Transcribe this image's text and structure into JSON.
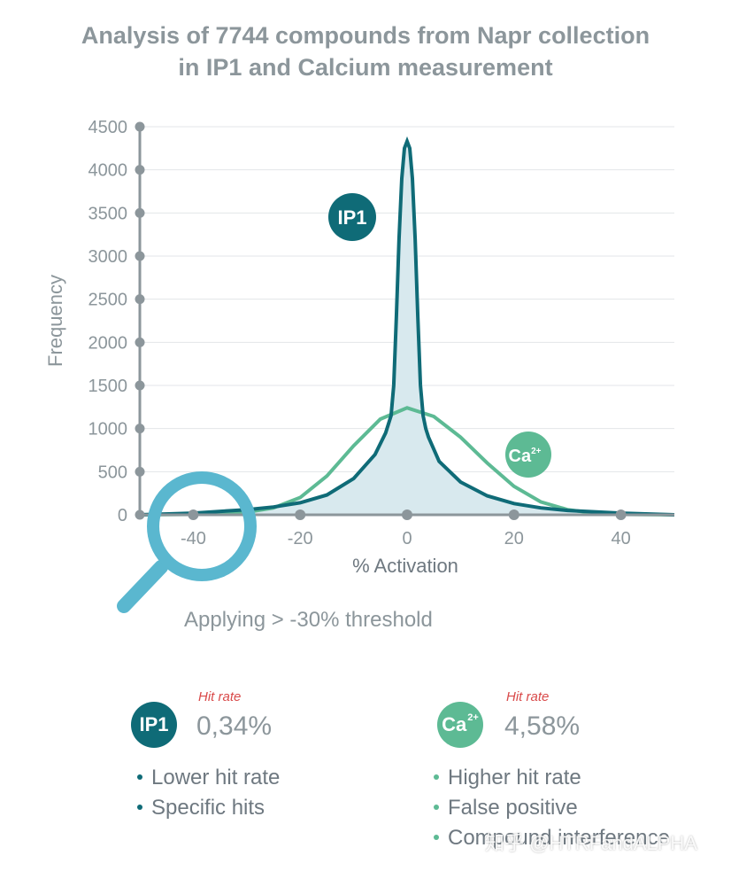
{
  "title": {
    "line1": "Analysis of 7744 compounds from Napr collection",
    "line2": "in IP1 and Calcium measurement"
  },
  "colors": {
    "ip1": "#0f6b77",
    "ca": "#5dba94",
    "fill": "#d8e9ee",
    "axis": "#8c969b",
    "grid": "#e3e6e8",
    "magnifier": "#5ab7cf"
  },
  "icons": [
    "magnifier-icon"
  ],
  "chart_data": {
    "type": "line",
    "title": "Analysis of 7744 compounds from Napr collection in IP1 and Calcium measurement",
    "xlabel": "% Activation",
    "ylabel": "Frequency",
    "xlim": [
      -50,
      50
    ],
    "ylim": [
      0,
      4500
    ],
    "x_ticks": [
      "-40",
      "-20",
      "0",
      "20",
      "40"
    ],
    "x_tick_values": [
      -40,
      -20,
      0,
      20,
      40
    ],
    "y_ticks": [
      "0",
      "500",
      "1000",
      "1500",
      "2000",
      "2500",
      "3000",
      "3500",
      "4000",
      "4500"
    ],
    "y_tick_values": [
      0,
      500,
      1000,
      1500,
      2000,
      2500,
      3000,
      3500,
      4000,
      4500
    ],
    "grid": true,
    "series": [
      {
        "name": "IP1",
        "label": "IP1",
        "filled": true,
        "x": [
          -50,
          -40,
          -30,
          -25,
          -20,
          -15,
          -10,
          -6,
          -4,
          -3,
          -2.5,
          -2,
          -1.5,
          -1,
          -0.5,
          0,
          0.5,
          1,
          1.5,
          2,
          2.5,
          3,
          3.5,
          4,
          6,
          10,
          15,
          20,
          25,
          30,
          40,
          50
        ],
        "y": [
          0,
          20,
          60,
          90,
          140,
          230,
          420,
          700,
          950,
          1150,
          1500,
          2300,
          3200,
          3900,
          4250,
          4330,
          4250,
          3900,
          3200,
          2300,
          1500,
          1150,
          1000,
          900,
          620,
          380,
          220,
          130,
          80,
          50,
          20,
          0
        ]
      },
      {
        "name": "Ca2+",
        "label": "Ca",
        "label_superscript": "2+",
        "filled": false,
        "x": [
          -50,
          -40,
          -30,
          -25,
          -20,
          -15,
          -10,
          -5,
          0,
          5,
          10,
          15,
          20,
          25,
          30,
          35,
          40,
          45,
          50
        ],
        "y": [
          0,
          5,
          30,
          80,
          200,
          450,
          800,
          1110,
          1240,
          1140,
          900,
          600,
          330,
          150,
          60,
          20,
          5,
          2,
          0
        ]
      }
    ],
    "annotation": "Applying > -30% threshold"
  },
  "threshold_text": "Applying > -30% threshold",
  "summary": {
    "ip1": {
      "badge": "IP1",
      "hit_label": "Hit rate",
      "hit_value": "0,34%",
      "bullets": [
        "Lower hit rate",
        "Specific hits"
      ]
    },
    "ca": {
      "badge": "Ca",
      "badge_sup": "2+",
      "hit_label": "Hit rate",
      "hit_value": "4,58%",
      "bullets": [
        "Higher hit rate",
        "False positive",
        "Compound interference"
      ]
    }
  },
  "watermark": "知乎 @HTRFandALPHA"
}
